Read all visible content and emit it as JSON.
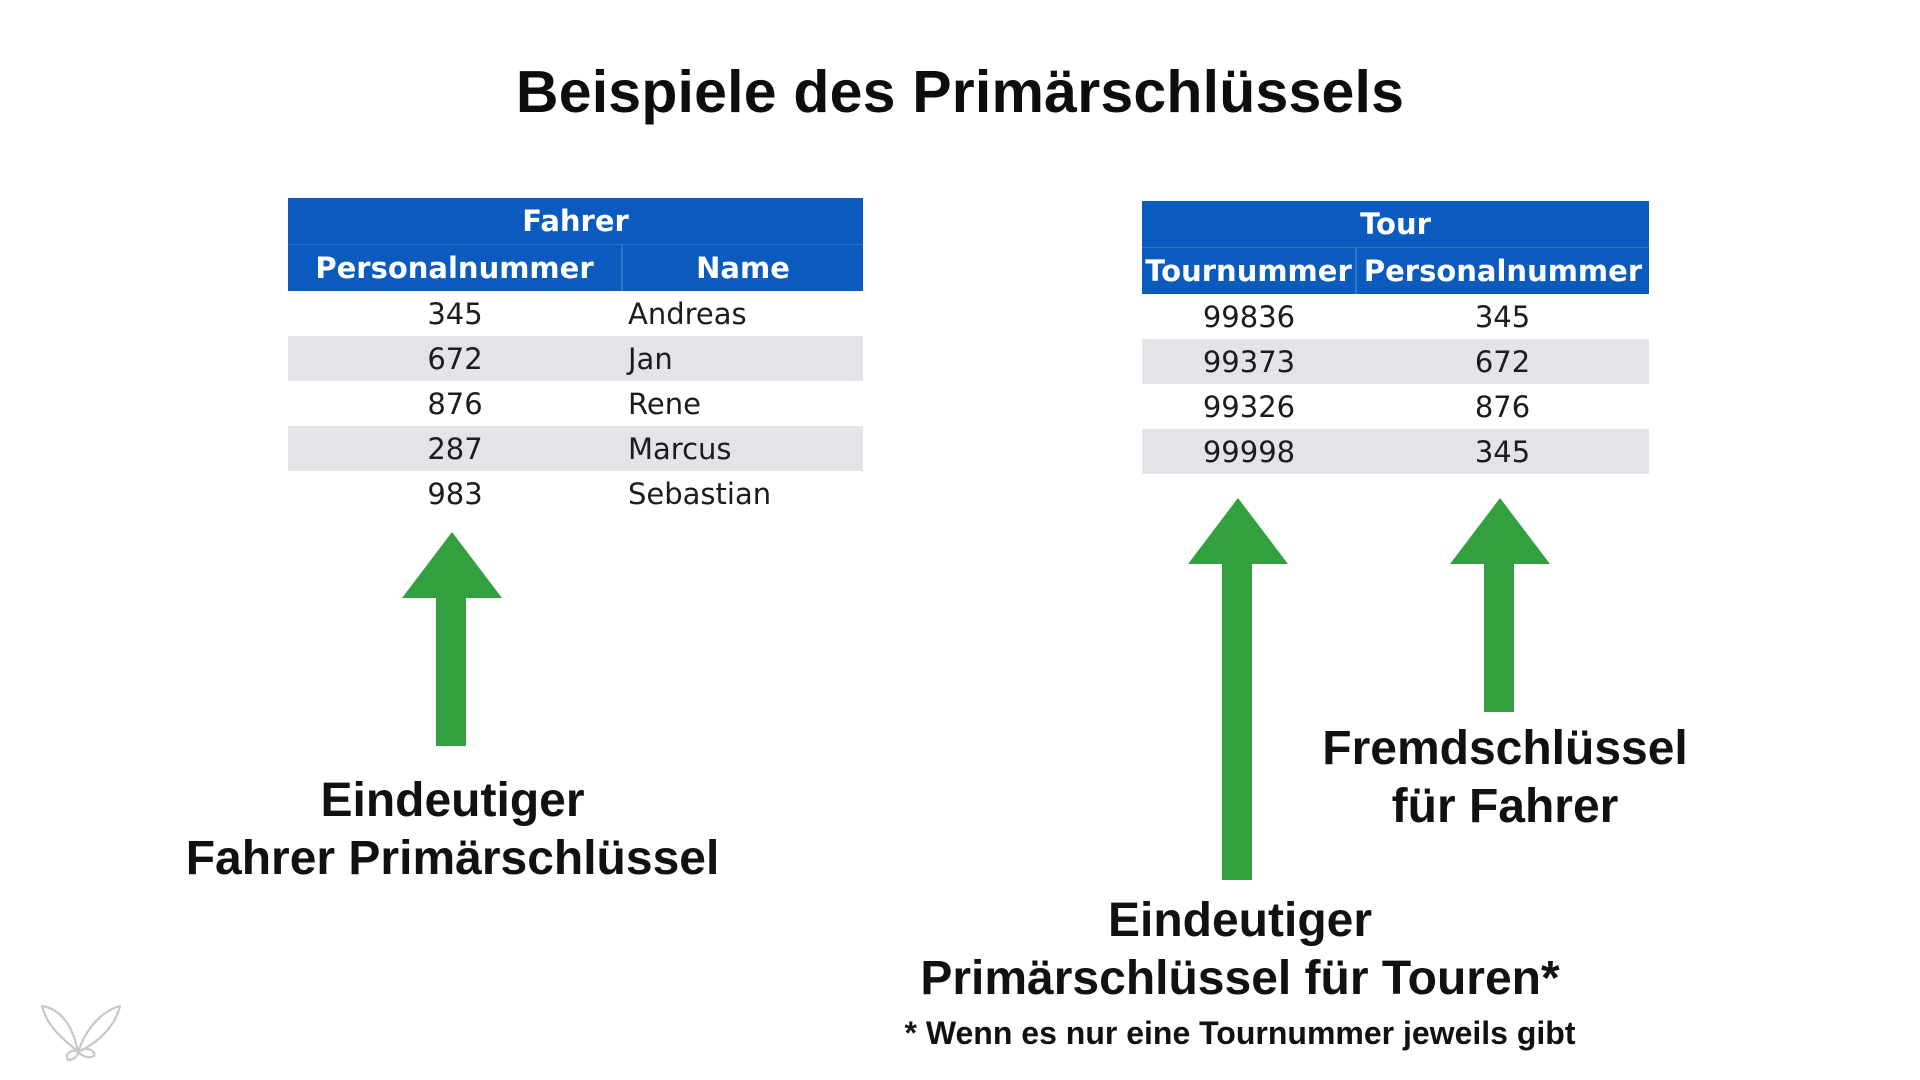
{
  "title": "Beispiele des Primärschlüssels",
  "fahrer_table": {
    "caption": "Fahrer",
    "headers": [
      "Personalnummer",
      "Name"
    ],
    "rows": [
      [
        "345",
        "Andreas"
      ],
      [
        "672",
        "Jan"
      ],
      [
        "876",
        "Rene"
      ],
      [
        "287",
        "Marcus"
      ],
      [
        "983",
        "Sebastian"
      ]
    ]
  },
  "tour_table": {
    "caption": "Tour",
    "headers": [
      "Tournummer",
      "Personalnummer"
    ],
    "rows": [
      [
        "99836",
        "345"
      ],
      [
        "99373",
        "672"
      ],
      [
        "99326",
        "876"
      ],
      [
        "99998",
        "345"
      ]
    ]
  },
  "labels": {
    "fahrer_pk": [
      "Eindeutiger",
      "Fahrer Primärschlüssel"
    ],
    "foreign_key": [
      "Fremdschlüssel",
      "für Fahrer"
    ],
    "tour_pk": [
      "Eindeutiger",
      "Primärschlüssel für Touren*"
    ]
  },
  "footnote": "* Wenn es nur eine Tournummer jeweils gibt",
  "colors": {
    "header_blue": "#0a5bbd",
    "row_alt": "#e4e4e8",
    "arrow_green": "#33a03f"
  },
  "icons": {
    "arrow": "arrow-up-icon",
    "logo": "butterfly-logo-icon"
  }
}
